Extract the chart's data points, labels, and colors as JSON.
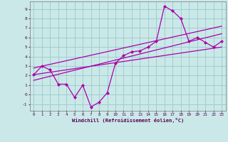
{
  "xlabel": "Windchill (Refroidissement éolien,°C)",
  "background_color": "#cbe8e8",
  "grid_color": "#9ecece",
  "line_color": "#aa00aa",
  "xlim": [
    -0.5,
    23.5
  ],
  "ylim": [
    -1.7,
    9.8
  ],
  "xticks": [
    0,
    1,
    2,
    3,
    4,
    5,
    6,
    7,
    8,
    9,
    10,
    11,
    12,
    13,
    14,
    15,
    16,
    17,
    18,
    19,
    20,
    21,
    22,
    23
  ],
  "yticks": [
    -1,
    0,
    1,
    2,
    3,
    4,
    5,
    6,
    7,
    8,
    9
  ],
  "series1_x": [
    0,
    1,
    2,
    3,
    4,
    5,
    6,
    7,
    8,
    9,
    10,
    11,
    12,
    13,
    14,
    15,
    16,
    17,
    18,
    19,
    20,
    21,
    22,
    23
  ],
  "series1_y": [
    2.1,
    3.0,
    2.6,
    1.1,
    1.1,
    -0.3,
    1.0,
    -1.3,
    -0.8,
    0.2,
    3.3,
    4.1,
    4.5,
    4.6,
    5.0,
    5.6,
    9.3,
    8.8,
    8.0,
    5.6,
    6.0,
    5.5,
    5.0,
    5.6
  ],
  "series2_x": [
    0,
    23
  ],
  "series2_y": [
    2.1,
    5.0
  ],
  "series3_x": [
    0,
    23
  ],
  "series3_y": [
    2.8,
    7.2
  ],
  "series4_x": [
    0,
    23
  ],
  "series4_y": [
    1.5,
    6.4
  ]
}
